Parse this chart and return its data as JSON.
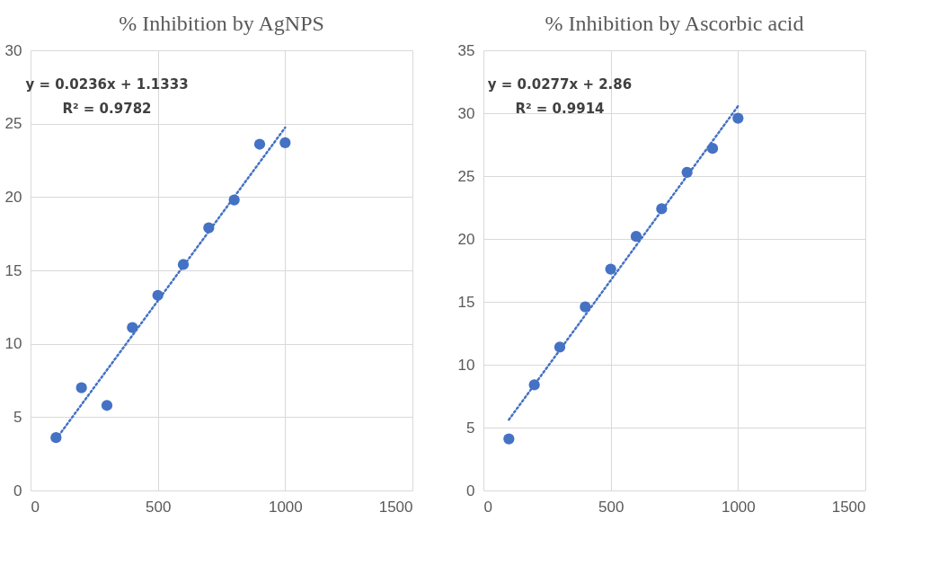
{
  "chart_data": [
    {
      "type": "scatter",
      "title": "% Inhibition by AgNPS",
      "xlim": [
        0,
        1500
      ],
      "xticks": [
        0,
        500,
        1000,
        1500
      ],
      "ylim": [
        0,
        30
      ],
      "yticks": [
        0,
        5,
        10,
        15,
        20,
        25,
        30
      ],
      "grid": true,
      "annotations": [
        "y = 0.0236x + 1.1333",
        "R² = 0.9782"
      ],
      "series": [
        {
          "type": "scatter",
          "marker": "circle",
          "color": "#4472c4",
          "x": [
            100,
            200,
            300,
            400,
            500,
            600,
            700,
            800,
            900,
            1000
          ],
          "values": [
            3.6,
            7.0,
            5.8,
            11.1,
            13.3,
            15.4,
            17.9,
            19.8,
            23.6,
            23.7
          ]
        },
        {
          "type": "line",
          "marker": "none",
          "line_style": "dotted",
          "color": "#4472c4",
          "x": [
            100,
            1000
          ],
          "values": [
            3.49,
            24.73
          ]
        }
      ]
    },
    {
      "type": "scatter",
      "title": "% Inhibition by Ascorbic acid",
      "xlim": [
        0,
        1500
      ],
      "xticks": [
        0,
        500,
        1000,
        1500
      ],
      "ylim": [
        0,
        35
      ],
      "yticks": [
        0,
        5,
        10,
        15,
        20,
        25,
        30,
        35
      ],
      "grid": true,
      "annotations": [
        "y = 0.0277x + 2.86",
        "R² = 0.9914"
      ],
      "series": [
        {
          "type": "scatter",
          "marker": "circle",
          "color": "#4472c4",
          "x": [
            100,
            200,
            300,
            400,
            500,
            600,
            700,
            800,
            900,
            1000
          ],
          "values": [
            4.1,
            8.4,
            11.4,
            14.6,
            17.6,
            20.2,
            22.4,
            25.3,
            27.2,
            29.6
          ]
        },
        {
          "type": "line",
          "marker": "none",
          "line_style": "dotted",
          "color": "#4472c4",
          "x": [
            100,
            1000
          ],
          "values": [
            5.63,
            30.56
          ]
        }
      ]
    }
  ]
}
